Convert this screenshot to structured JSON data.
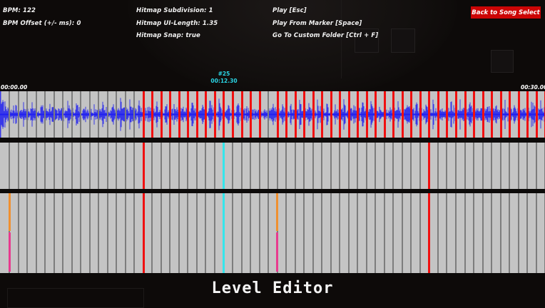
{
  "info_left": {
    "bpm": "BPM: 122",
    "bpm_offset": "BPM Offset (+/- ms): 0"
  },
  "info_mid": {
    "subdivision": "Hitmap Subdivision: 1",
    "ui_length": "Hitmap UI-Length: 1.35",
    "snap": "Hitmap Snap: true"
  },
  "shortcuts": {
    "play": "Play [Esc]",
    "play_from_marker": "Play From Marker [Space]",
    "custom_folder": "Go To Custom Folder [Ctrl + F]"
  },
  "back_button": {
    "label": "Back to Song Select",
    "color": "#cc0505"
  },
  "timeline": {
    "start_time": "00:00.00",
    "end_time": "00:30.00",
    "marker": {
      "index": "#25",
      "time": "00:12.30",
      "color": "#33e6ec"
    }
  },
  "colors": {
    "lane_bg": "#c4c4c4",
    "grid": "#7d7d7d",
    "beat_red": "#f01010",
    "waveform": "#2020f0",
    "hold_orange": "#f09030",
    "hold_pink": "#e83a8e"
  },
  "footer": {
    "title": "Level Editor"
  }
}
